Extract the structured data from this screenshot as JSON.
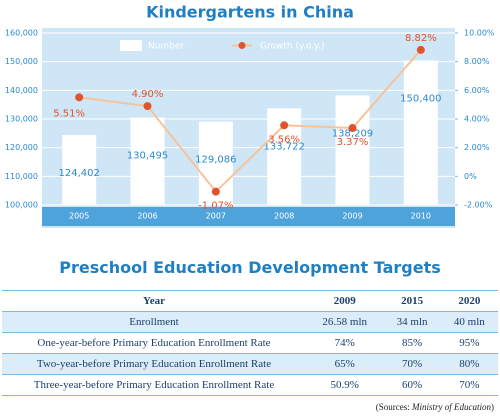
{
  "chart_data": {
    "type": "bar",
    "title": "Kindergartens in China",
    "categories": [
      "2005",
      "2006",
      "2007",
      "2008",
      "2009",
      "2010"
    ],
    "series": [
      {
        "name": "Number",
        "type": "bar",
        "color": "#ffffff",
        "values": [
          124402,
          130495,
          129086,
          133722,
          138209,
          150400
        ],
        "value_labels": [
          "124,402",
          "130,495",
          "129,086",
          "133,722",
          "138,209",
          "150,400"
        ]
      },
      {
        "name": "Growth (y.o.y.)",
        "type": "line",
        "axis": "y2",
        "color": "#e2522b",
        "values": [
          5.51,
          4.9,
          -1.07,
          3.56,
          3.37,
          8.82
        ],
        "value_labels": [
          "5.51%",
          "4.90%",
          "-1.07%",
          "3.56%",
          "3.37%",
          "8.82%"
        ]
      }
    ],
    "ylim": [
      100000,
      160000
    ],
    "yticks": [
      {
        "value": 100000,
        "label": "100,000"
      },
      {
        "value": 110000,
        "label": "110,000"
      },
      {
        "value": 120000,
        "label": "120,000"
      },
      {
        "value": 130000,
        "label": "130,000"
      },
      {
        "value": 140000,
        "label": "140,000"
      },
      {
        "value": 150000,
        "label": "150,000"
      },
      {
        "value": 160000,
        "label": "160,000"
      }
    ],
    "y2lim": [
      -2,
      10
    ],
    "y2ticks": [
      {
        "value": -2,
        "label": "-2.00%"
      },
      {
        "value": 0,
        "label": "0%"
      },
      {
        "value": 2,
        "label": "2.00%"
      },
      {
        "value": 4,
        "label": "4.00%"
      },
      {
        "value": 6,
        "label": "6.00%"
      },
      {
        "value": 8,
        "label": "8.00%"
      },
      {
        "value": 10,
        "label": "10.00%"
      }
    ],
    "grid": true
  },
  "table": {
    "title": "Preschool Education Development Targets",
    "header": [
      "Year",
      "2009",
      "2015",
      "2020"
    ],
    "rows": [
      [
        "Enrollment",
        "26.58 mln",
        "34 mln",
        "40 mln"
      ],
      [
        "One-year-before Primary Education Enrollment Rate",
        "74%",
        "85%",
        "95%"
      ],
      [
        "Two-year-before Primary Education Enrollment Rate",
        "65%",
        "70%",
        "80%"
      ],
      [
        "Three-year-before Primary Education Enrollment Rate",
        "50.9%",
        "60%",
        "70%"
      ]
    ]
  },
  "source": {
    "prefix": "(Sources: ",
    "publisher": "Ministry of Education",
    "suffix": ")"
  }
}
